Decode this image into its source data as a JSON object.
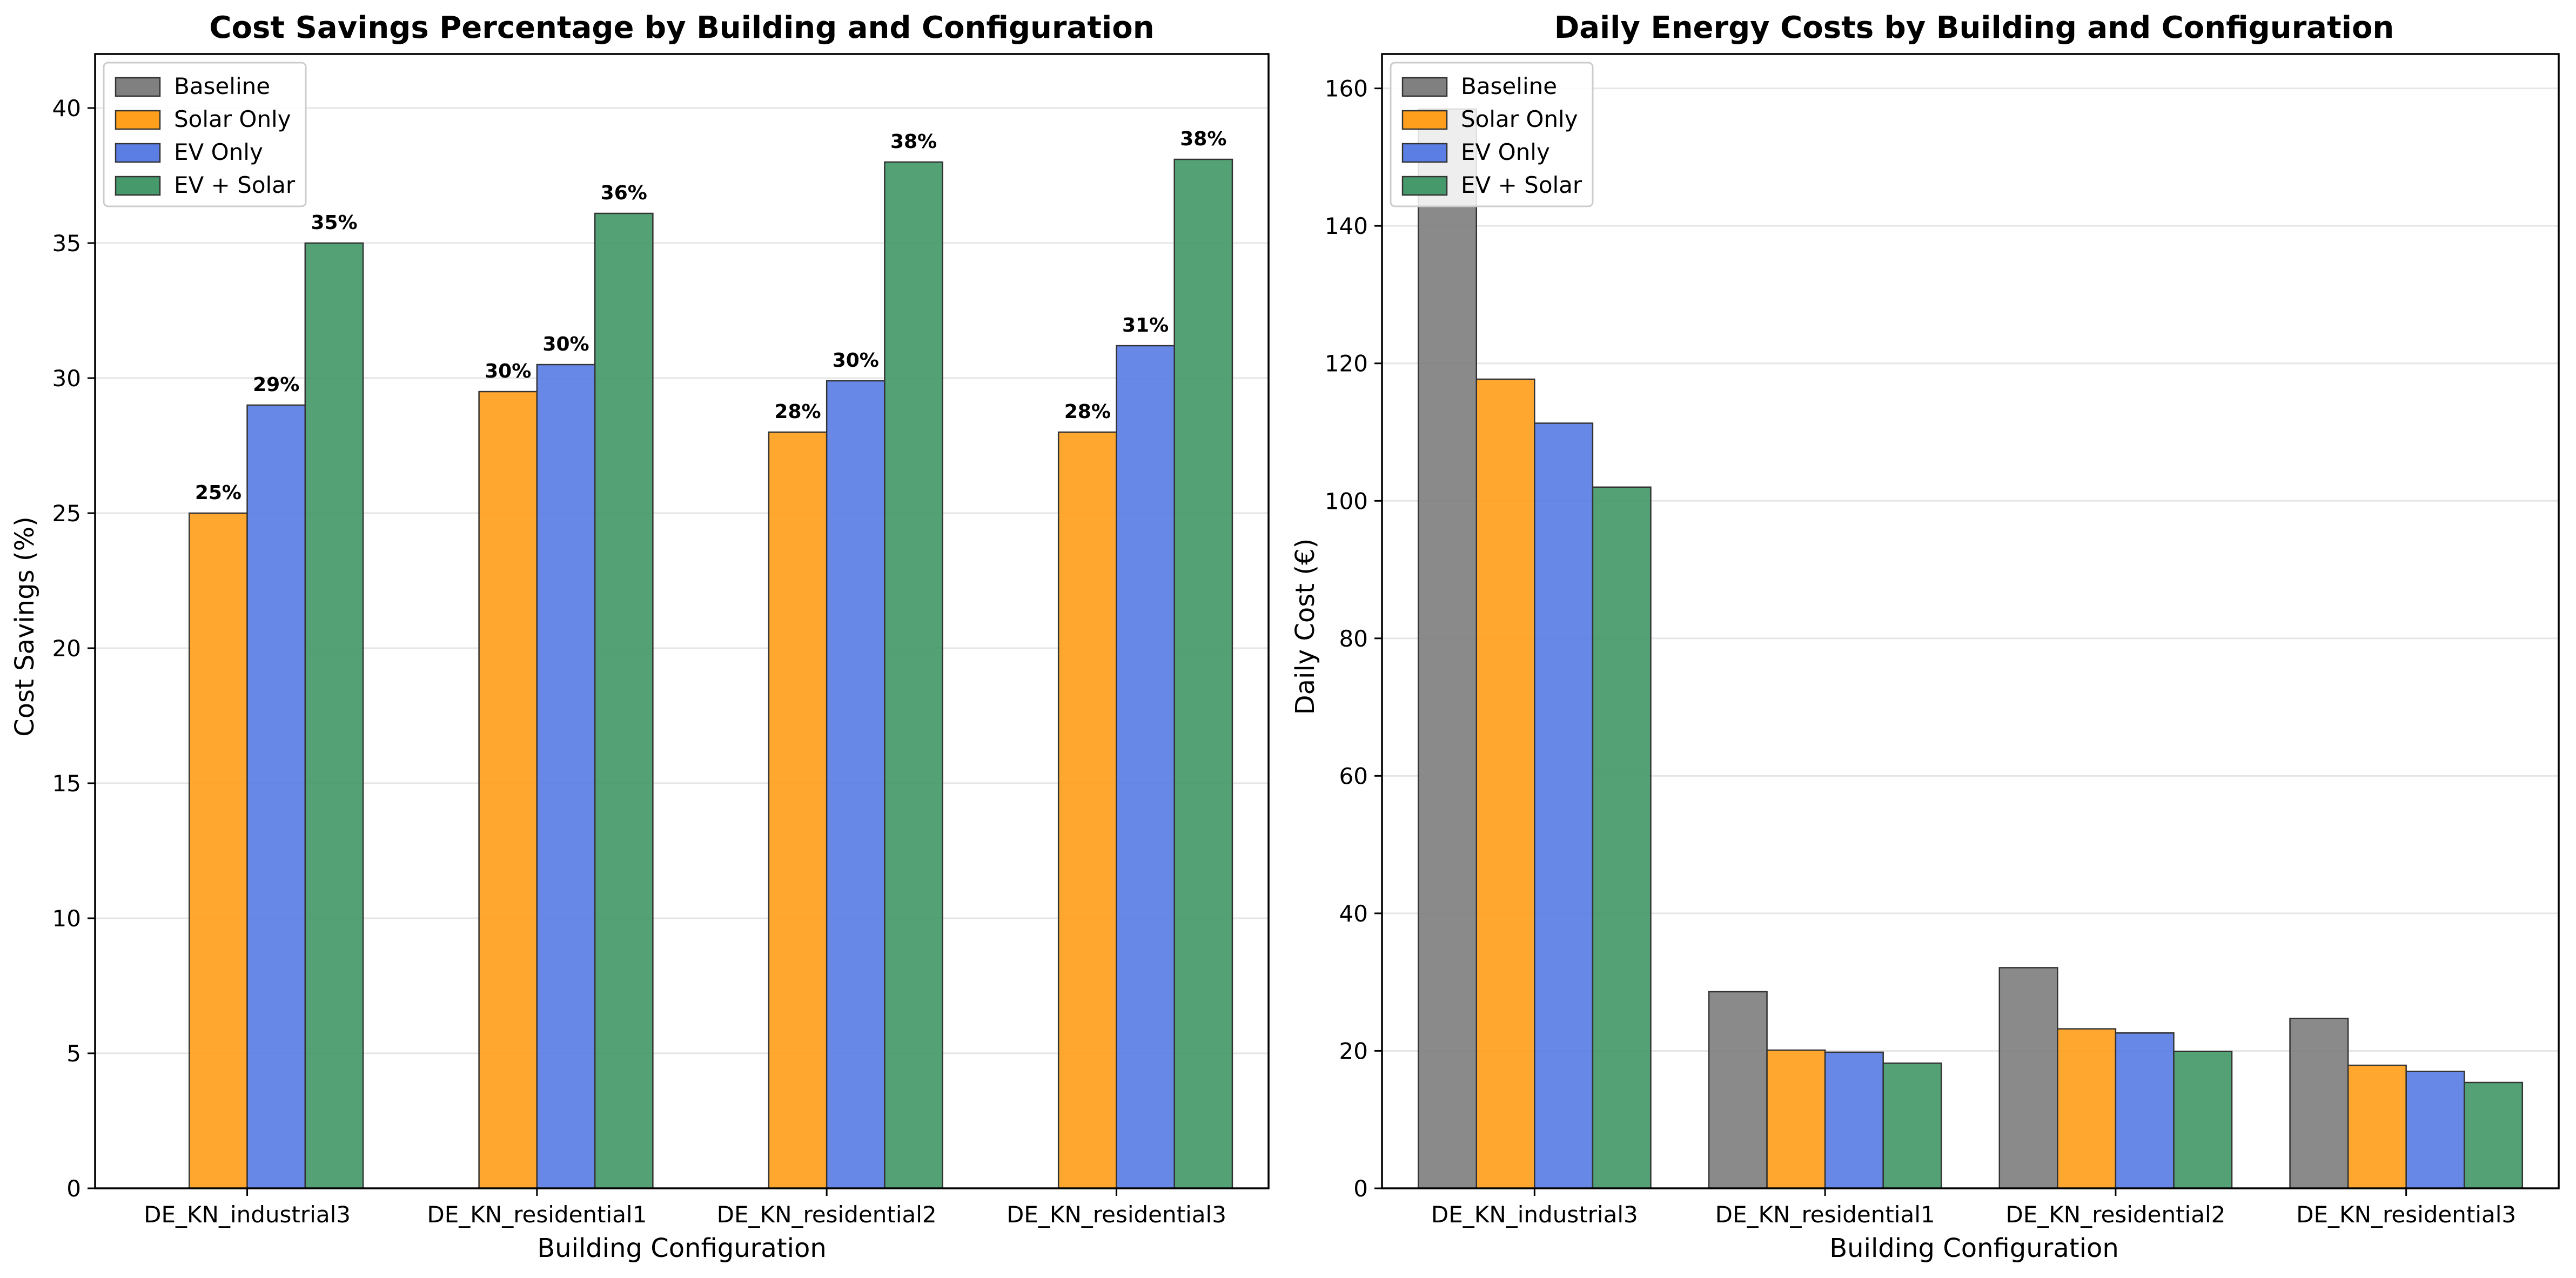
{
  "chart_data": [
    {
      "type": "bar",
      "title": "Cost Savings Percentage by Building and Configuration",
      "xlabel": "Building Configuration",
      "ylabel": "Cost Savings (%)",
      "categories": [
        "DE_KN_industrial3",
        "DE_KN_residential1",
        "DE_KN_residential2",
        "DE_KN_residential3"
      ],
      "ylim": [
        0,
        42
      ],
      "yticks": [
        0,
        5,
        10,
        15,
        20,
        25,
        30,
        35,
        40
      ],
      "grid": "y",
      "legend_position": "top-left",
      "series": [
        {
          "name": "Baseline",
          "values": [
            0,
            0,
            0,
            0
          ],
          "labels": [
            "",
            "",
            "",
            ""
          ]
        },
        {
          "name": "Solar Only",
          "values": [
            25.0,
            29.5,
            28.0,
            28.0
          ],
          "labels": [
            "25%",
            "30%",
            "28%",
            "28%"
          ]
        },
        {
          "name": "EV Only",
          "values": [
            29.0,
            30.5,
            29.9,
            31.2
          ],
          "labels": [
            "29%",
            "30%",
            "30%",
            "31%"
          ]
        },
        {
          "name": "EV + Solar",
          "values": [
            35.0,
            36.1,
            38.0,
            38.1
          ],
          "labels": [
            "35%",
            "36%",
            "38%",
            "38%"
          ]
        }
      ]
    },
    {
      "type": "bar",
      "title": "Daily Energy Costs by Building and Configuration",
      "xlabel": "Building Configuration",
      "ylabel": "Daily Cost (€)",
      "categories": [
        "DE_KN_industrial3",
        "DE_KN_residential1",
        "DE_KN_residential2",
        "DE_KN_residential3"
      ],
      "ylim": [
        0,
        165
      ],
      "yticks": [
        0,
        20,
        40,
        60,
        80,
        100,
        120,
        140,
        160
      ],
      "grid": "y",
      "legend_position": "top-left",
      "series": [
        {
          "name": "Baseline",
          "values": [
            157.0,
            28.6,
            32.1,
            24.7
          ]
        },
        {
          "name": "Solar Only",
          "values": [
            117.7,
            20.1,
            23.2,
            17.9
          ]
        },
        {
          "name": "EV Only",
          "values": [
            111.3,
            19.8,
            22.6,
            17.0
          ]
        },
        {
          "name": "EV + Solar",
          "values": [
            102.0,
            18.2,
            19.9,
            15.4
          ]
        }
      ]
    }
  ],
  "colors": {
    "Baseline": "#808080",
    "Solar Only": "#ff9f1c",
    "EV Only": "#5b7ee5",
    "EV + Solar": "#45996a"
  }
}
